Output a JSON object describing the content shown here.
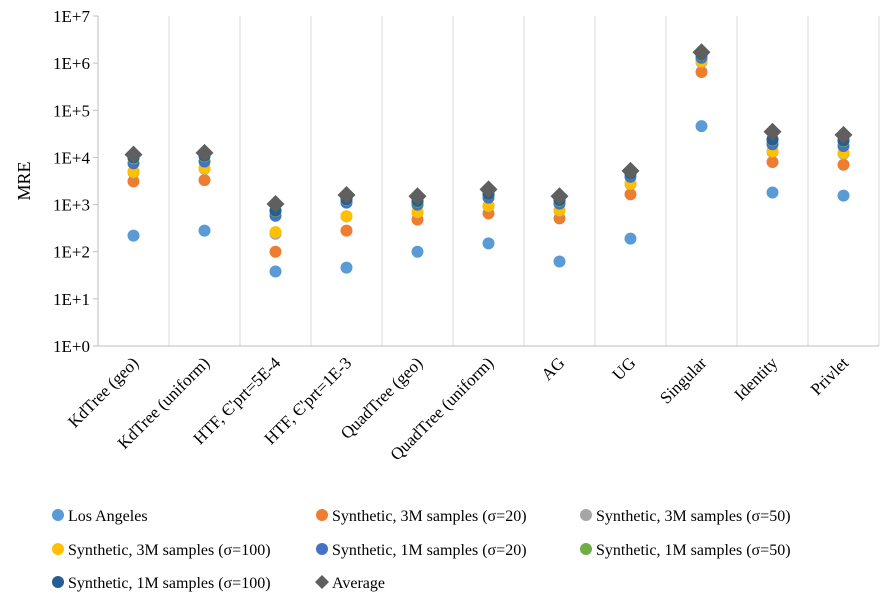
{
  "chart_data": {
    "type": "scatter",
    "title": "",
    "xlabel": "",
    "ylabel": "MRE",
    "yscale": "log",
    "ylim": [
      1,
      10000000
    ],
    "yticks": [
      {
        "value": 1,
        "label": "1E+0"
      },
      {
        "value": 10,
        "label": "1E+1"
      },
      {
        "value": 100,
        "label": "1E+2"
      },
      {
        "value": 1000,
        "label": "1E+3"
      },
      {
        "value": 10000,
        "label": "1E+4"
      },
      {
        "value": 100000,
        "label": "1E+5"
      },
      {
        "value": 1000000,
        "label": "1E+6"
      },
      {
        "value": 10000000,
        "label": "1E+7"
      }
    ],
    "grid": "vertical",
    "legend_position": "bottom",
    "categories": [
      "KdTree (geo)",
      "KdTree (uniform)",
      "HTF, Є'prt=5E-4",
      "HTF, Є'prt=1E-3",
      "QuadTree (geo)",
      "QuadTree (uniform)",
      "AG",
      "UG",
      "Singular",
      "Identity",
      "Privlet"
    ],
    "series": [
      {
        "name": "Los Angeles",
        "marker": "circle",
        "color": "#5B9BD5",
        "values": [
          220,
          280,
          38,
          46,
          100,
          150,
          62,
          190,
          46000,
          1800,
          1550
        ]
      },
      {
        "name": "Synthetic, 3M samples (σ=20)",
        "marker": "circle",
        "color": "#ED7D31",
        "values": [
          3100,
          3300,
          100,
          280,
          480,
          650,
          510,
          1650,
          650000,
          8000,
          7000
        ]
      },
      {
        "name": "Synthetic, 3M samples (σ=50)",
        "marker": "circle",
        "color": "#A5A5A5",
        "values": [
          4800,
          5700,
          240,
          560,
          680,
          920,
          740,
          2700,
          1050000,
          13000,
          12000
        ]
      },
      {
        "name": "Synthetic, 3M samples (σ=100)",
        "marker": "circle",
        "color": "#FFC000",
        "values": [
          5000,
          5900,
          260,
          570,
          700,
          950,
          760,
          2800,
          1100000,
          13500,
          12500
        ]
      },
      {
        "name": "Synthetic, 1M samples (σ=20)",
        "marker": "circle",
        "color": "#4472C4",
        "values": [
          7500,
          8200,
          580,
          1100,
          1000,
          1400,
          1050,
          3900,
          1300000,
          19000,
          17500
        ]
      },
      {
        "name": "Synthetic, 1M samples (σ=50)",
        "marker": "circle",
        "color": "#70AD47",
        "values": [
          9500,
          10500,
          720,
          1250,
          1150,
          1650,
          1200,
          4500,
          1500000,
          23000,
          22000
        ]
      },
      {
        "name": "Synthetic, 1M samples (σ=100)",
        "marker": "circle",
        "color": "#255E91",
        "values": [
          10000,
          11000,
          750,
          1300,
          1200,
          1700,
          1250,
          4600,
          1550000,
          24000,
          23000
        ]
      },
      {
        "name": "Average",
        "marker": "diamond",
        "color": "#5F5F5F",
        "values": [
          11500,
          12500,
          1030,
          1600,
          1500,
          2100,
          1500,
          5200,
          1700000,
          35000,
          30000
        ]
      }
    ]
  }
}
